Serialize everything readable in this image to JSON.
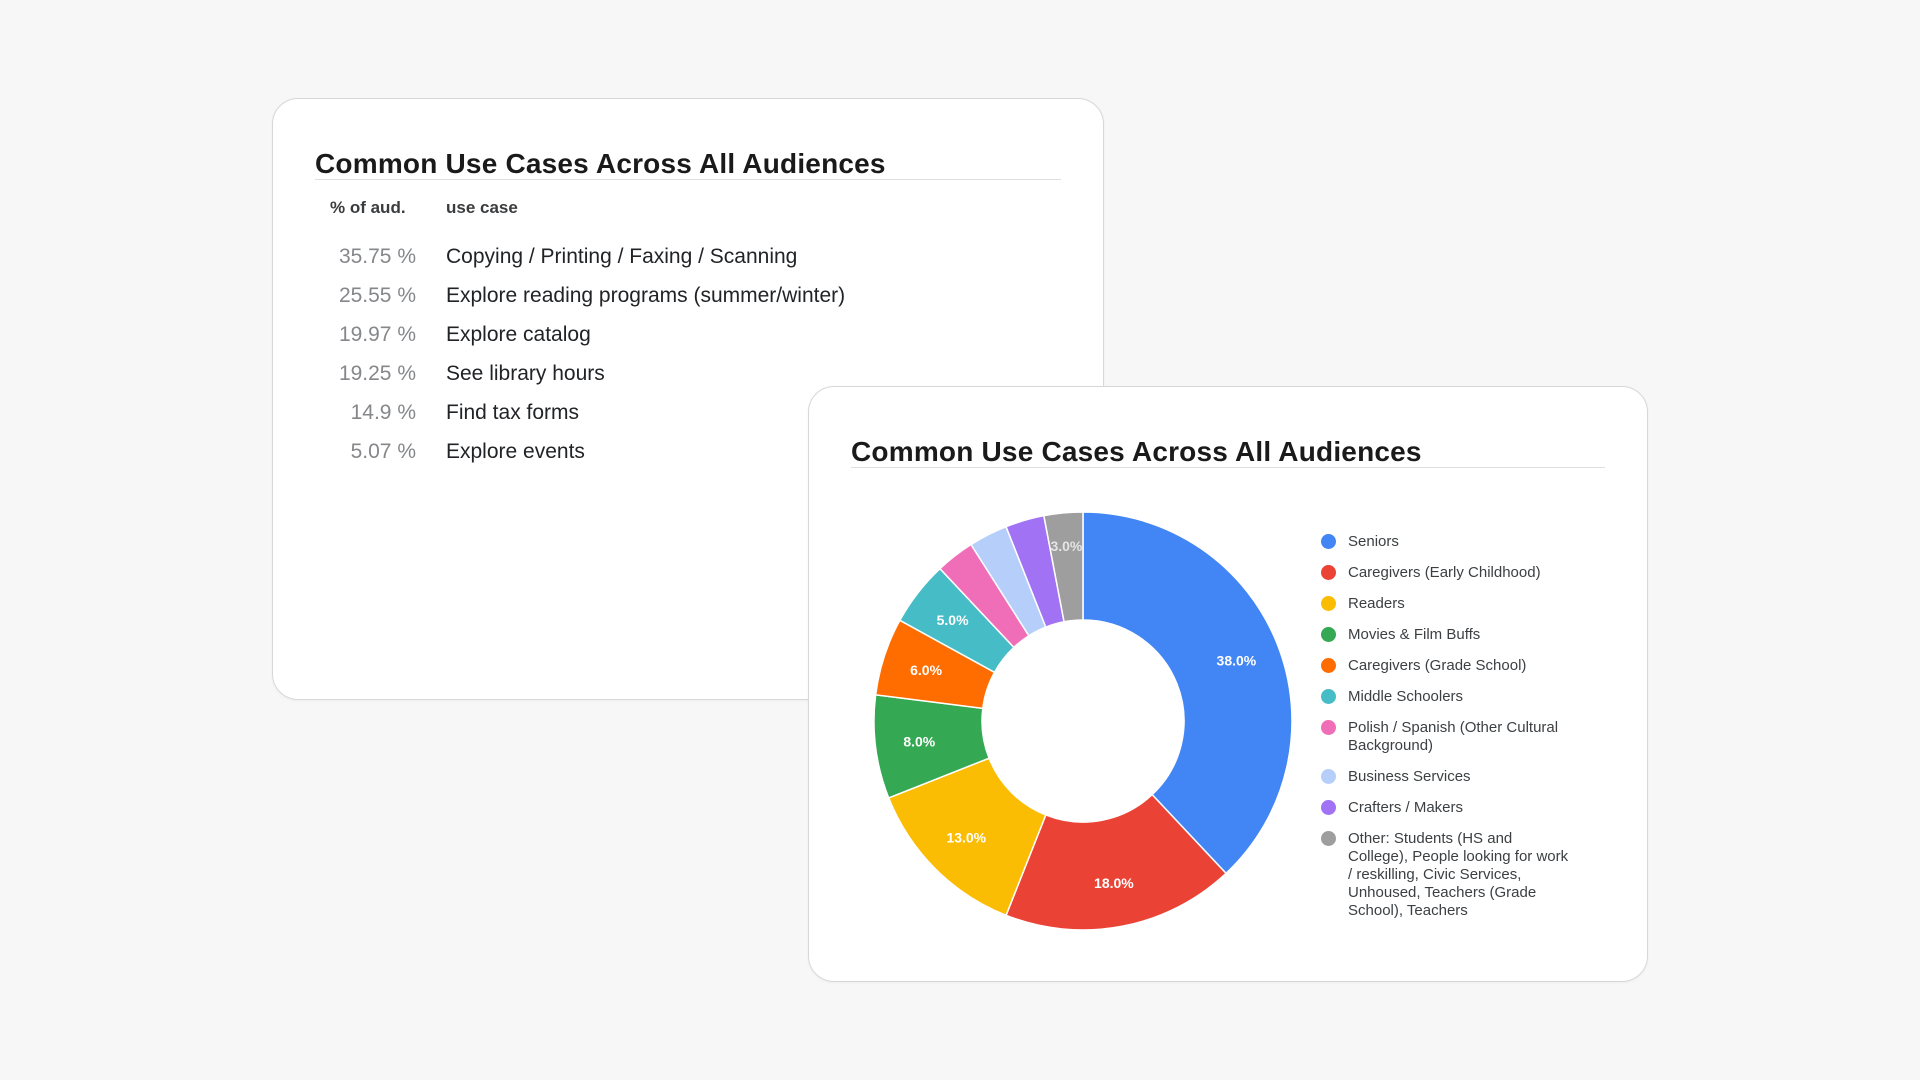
{
  "page": {
    "background_color": "#f7f7f8",
    "card_background": "#ffffff",
    "card_border_color": "#d7d7d7"
  },
  "table_card": {
    "title": "Common Use Cases Across All Audiences",
    "columns": {
      "pct": "% of aud.",
      "use_case": "use case"
    },
    "rows": [
      {
        "pct": "35.75 %",
        "use_case": "Copying / Printing / Faxing / Scanning"
      },
      {
        "pct": "25.55 %",
        "use_case": "Explore reading programs (summer/winter)"
      },
      {
        "pct": "19.97 %",
        "use_case": "Explore catalog"
      },
      {
        "pct": "19.25 %",
        "use_case": "See library hours"
      },
      {
        "pct": "14.9 %",
        "use_case": "Find tax forms"
      },
      {
        "pct": "5.07 %",
        "use_case": "Explore events"
      }
    ]
  },
  "chart_card": {
    "title": "Common Use Cases Across All Audiences"
  },
  "chart_data": {
    "type": "pie",
    "donut": true,
    "title": "Common Use Cases Across All Audiences",
    "legend_position": "right",
    "slice_label_color": "#ffffff",
    "total": 100,
    "slices": [
      {
        "label": "Seniors",
        "value": 38.0,
        "color": "#4285F4",
        "slice_text": "38.0%"
      },
      {
        "label": "Caregivers (Early Childhood)",
        "value": 18.0,
        "color": "#EA4335",
        "slice_text": "18.0%"
      },
      {
        "label": "Readers",
        "value": 13.0,
        "color": "#FBBC04",
        "slice_text": "13.0%"
      },
      {
        "label": "Movies & Film Buffs",
        "value": 8.0,
        "color": "#34A853",
        "slice_text": "8.0%"
      },
      {
        "label": "Caregivers (Grade School)",
        "value": 6.0,
        "color": "#FF6D01",
        "slice_text": "6.0%"
      },
      {
        "label": "Middle Schoolers",
        "value": 5.0,
        "color": "#46BDC6",
        "slice_text": "5.0%"
      },
      {
        "label": "Polish / Spanish (Other Cultural Background)",
        "value": 3.0,
        "color": "#F06EB8",
        "slice_text": ""
      },
      {
        "label": "Business Services",
        "value": 3.0,
        "color": "#B5CEFA",
        "slice_text": ""
      },
      {
        "label": "Crafters / Makers",
        "value": 3.0,
        "color": "#A172F4",
        "slice_text": ""
      },
      {
        "label": "Other: Students (HS and College), People looking for work / reskilling, Civic Services, Unhoused, Teachers (Grade School), Teachers",
        "value": 3.0,
        "color": "#9E9E9E",
        "slice_text": "3.0%",
        "slice_text_color": "#e4e4e4"
      }
    ]
  }
}
